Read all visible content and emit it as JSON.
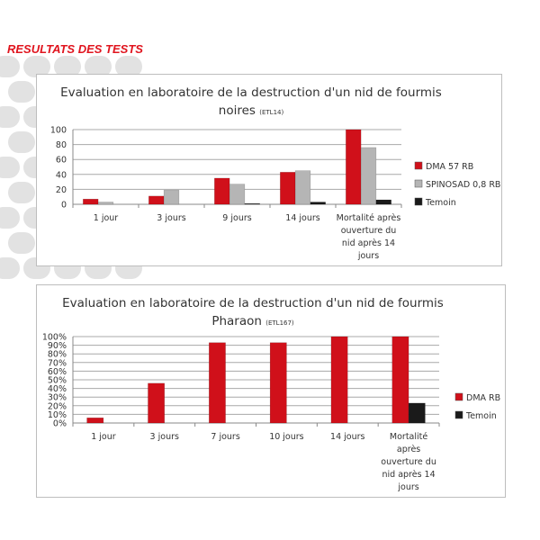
{
  "page_heading": "RESULTATS DES TESTS",
  "chart_data": [
    {
      "type": "bar",
      "title": "Evaluation en laboratoire de la destruction d'un nid de fourmis",
      "title_line2": "noires",
      "title_note": "(ETL14)",
      "categories": [
        "1 jour",
        "3 jours",
        "9 jours",
        "14 jours",
        [
          "Mortalité après",
          "ouverture du",
          "nid après 14",
          "jours"
        ]
      ],
      "series": [
        {
          "name": "DMA 57 RB",
          "color": "#d0101a",
          "values": [
            7,
            11,
            35,
            43,
            100
          ]
        },
        {
          "name": "SPINOSAD 0,8 RB",
          "color": "#b5b5b5",
          "values": [
            3,
            19,
            27,
            45,
            76
          ]
        },
        {
          "name": "Temoin",
          "color": "#1a1a1a",
          "values": [
            0,
            0,
            1,
            3,
            6
          ]
        }
      ],
      "yticks": [
        "0",
        "20",
        "40",
        "60",
        "80",
        "100"
      ],
      "ylim": [
        0,
        100
      ],
      "grid": true,
      "legend": "right"
    },
    {
      "type": "bar",
      "title": "Evaluation en laboratoire de la destruction d'un nid de fourmis",
      "title_line2": "Pharaon",
      "title_note": "(ETL167)",
      "categories": [
        "1 jour",
        "3 jours",
        "7 jours",
        "10 jours",
        "14 jours",
        [
          "Mortalité",
          "après",
          "ouverture du",
          "nid après 14",
          "jours"
        ]
      ],
      "series": [
        {
          "name": "DMA RB",
          "color": "#d0101a",
          "values": [
            6,
            46,
            93,
            93,
            100,
            100
          ]
        },
        {
          "name": "Temoin",
          "color": "#1a1a1a",
          "values": [
            0,
            0,
            0,
            0,
            0,
            23
          ]
        }
      ],
      "yticks": [
        "0%",
        "10%",
        "20%",
        "30%",
        "40%",
        "50%",
        "60%",
        "70%",
        "80%",
        "90%",
        "100%"
      ],
      "ylim": [
        0,
        100
      ],
      "grid": true,
      "legend": "right"
    }
  ]
}
